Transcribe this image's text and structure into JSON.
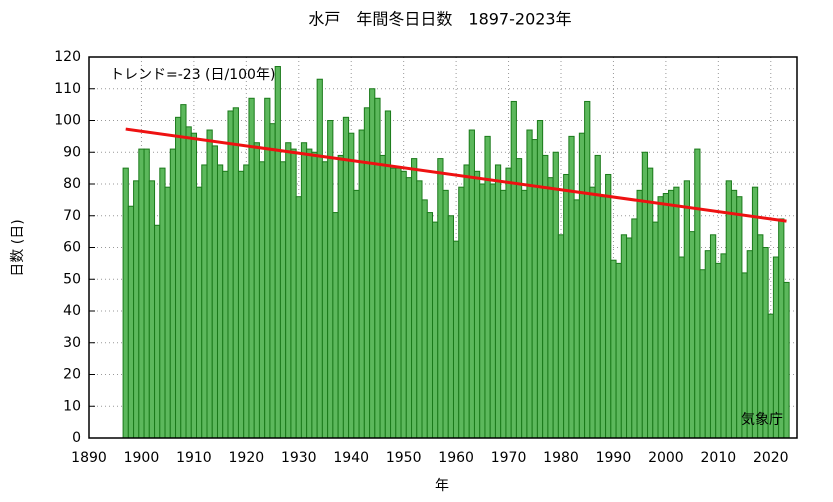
{
  "chart_data": {
    "type": "bar",
    "title": "水戸　年間冬日日数　1897-2023年",
    "xlabel": "年",
    "ylabel": "日数 (日)",
    "annotation": "気象庁",
    "trend_label": "トレンド=-23 (日/100年)",
    "color": "#5cb85c",
    "edge_color": "#1a7a1a",
    "x": [
      1897,
      1898,
      1899,
      1900,
      1901,
      1902,
      1903,
      1904,
      1905,
      1906,
      1907,
      1908,
      1909,
      1910,
      1911,
      1912,
      1913,
      1914,
      1915,
      1916,
      1917,
      1918,
      1919,
      1920,
      1921,
      1922,
      1923,
      1924,
      1925,
      1926,
      1927,
      1928,
      1929,
      1930,
      1931,
      1932,
      1933,
      1934,
      1935,
      1936,
      1937,
      1938,
      1939,
      1940,
      1941,
      1942,
      1943,
      1944,
      1945,
      1946,
      1947,
      1948,
      1949,
      1950,
      1951,
      1952,
      1953,
      1954,
      1955,
      1956,
      1957,
      1958,
      1959,
      1960,
      1961,
      1962,
      1963,
      1964,
      1965,
      1966,
      1967,
      1968,
      1969,
      1970,
      1971,
      1972,
      1973,
      1974,
      1975,
      1976,
      1977,
      1978,
      1979,
      1980,
      1981,
      1982,
      1983,
      1984,
      1985,
      1986,
      1987,
      1988,
      1989,
      1990,
      1991,
      1992,
      1993,
      1994,
      1995,
      1996,
      1997,
      1998,
      1999,
      2000,
      2001,
      2002,
      2003,
      2004,
      2005,
      2006,
      2007,
      2008,
      2009,
      2010,
      2011,
      2012,
      2013,
      2014,
      2015,
      2016,
      2017,
      2018,
      2019,
      2020,
      2021,
      2022,
      2023
    ],
    "values": [
      85,
      73,
      81,
      91,
      91,
      81,
      67,
      85,
      79,
      91,
      101,
      105,
      98,
      96,
      79,
      86,
      97,
      92,
      86,
      84,
      103,
      104,
      84,
      86,
      107,
      93,
      87,
      107,
      99,
      117,
      87,
      93,
      91,
      76,
      93,
      91,
      90,
      113,
      87,
      100,
      71,
      89,
      101,
      96,
      78,
      97,
      104,
      110,
      107,
      89,
      103,
      85,
      85,
      84,
      82,
      88,
      81,
      75,
      71,
      68,
      88,
      78,
      70,
      62,
      79,
      86,
      97,
      84,
      80,
      95,
      80,
      86,
      78,
      85,
      106,
      88,
      78,
      97,
      94,
      100,
      89,
      82,
      90,
      64,
      83,
      95,
      75,
      96,
      106,
      79,
      89,
      76,
      83,
      56,
      55,
      64,
      63,
      69,
      78,
      90,
      85,
      68,
      76,
      77,
      78,
      79,
      57,
      81,
      65,
      91,
      53,
      59,
      64,
      55,
      58,
      81,
      78,
      76,
      52,
      59,
      79,
      64,
      60,
      39,
      57,
      69,
      49
    ],
    "trend": {
      "x": [
        1897,
        2023
      ],
      "values": [
        97.3,
        68.3
      ],
      "color": "#ee1111"
    },
    "xlim": [
      1890,
      2025
    ],
    "ylim": [
      0,
      120
    ],
    "xticks": [
      1890,
      1900,
      1910,
      1920,
      1930,
      1940,
      1950,
      1960,
      1970,
      1980,
      1990,
      2000,
      2010,
      2020
    ],
    "yticks": [
      0,
      10,
      20,
      30,
      40,
      50,
      60,
      70,
      80,
      90,
      100,
      110,
      120
    ],
    "grid": true
  }
}
